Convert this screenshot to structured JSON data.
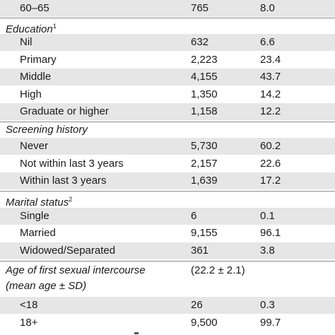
{
  "rows": [
    {
      "label": "60–65",
      "n": "765",
      "pct": "8.0"
    },
    {
      "label": "Education",
      "sup": "1"
    },
    {
      "label": "Nil",
      "n": "632",
      "pct": "6.6"
    },
    {
      "label": "Primary",
      "n": "2,223",
      "pct": "23.4"
    },
    {
      "label": "Middle",
      "n": "4,155",
      "pct": "43.7"
    },
    {
      "label": "High",
      "n": "1,350",
      "pct": "14.2"
    },
    {
      "label": "Graduate or higher",
      "n": "1,158",
      "pct": "12.2"
    },
    {
      "label": "Screening history"
    },
    {
      "label": "Never",
      "n": "5,730",
      "pct": "60.2"
    },
    {
      "label": "Not within last 3 years",
      "n": "2,157",
      "pct": "22.6"
    },
    {
      "label": "Within last 3 years",
      "n": "1,639",
      "pct": "17.2"
    },
    {
      "label": "Marital status",
      "sup": "2"
    },
    {
      "label": "Single",
      "n": "6",
      "pct": "0.1"
    },
    {
      "label": "Married",
      "n": "9,155",
      "pct": "96.1"
    },
    {
      "label": "Widowed/Separated",
      "n": "361",
      "pct": "3.8"
    },
    {
      "label_line1": "Age of first sexual intercourse",
      "label_line2": "(mean age ± SD)",
      "n": "(22.2 ± 2.1)"
    },
    {
      "label": "<18",
      "n": "26",
      "pct": "0.3"
    },
    {
      "label": "18+",
      "n": "9,500",
      "pct": "99.7"
    }
  ]
}
